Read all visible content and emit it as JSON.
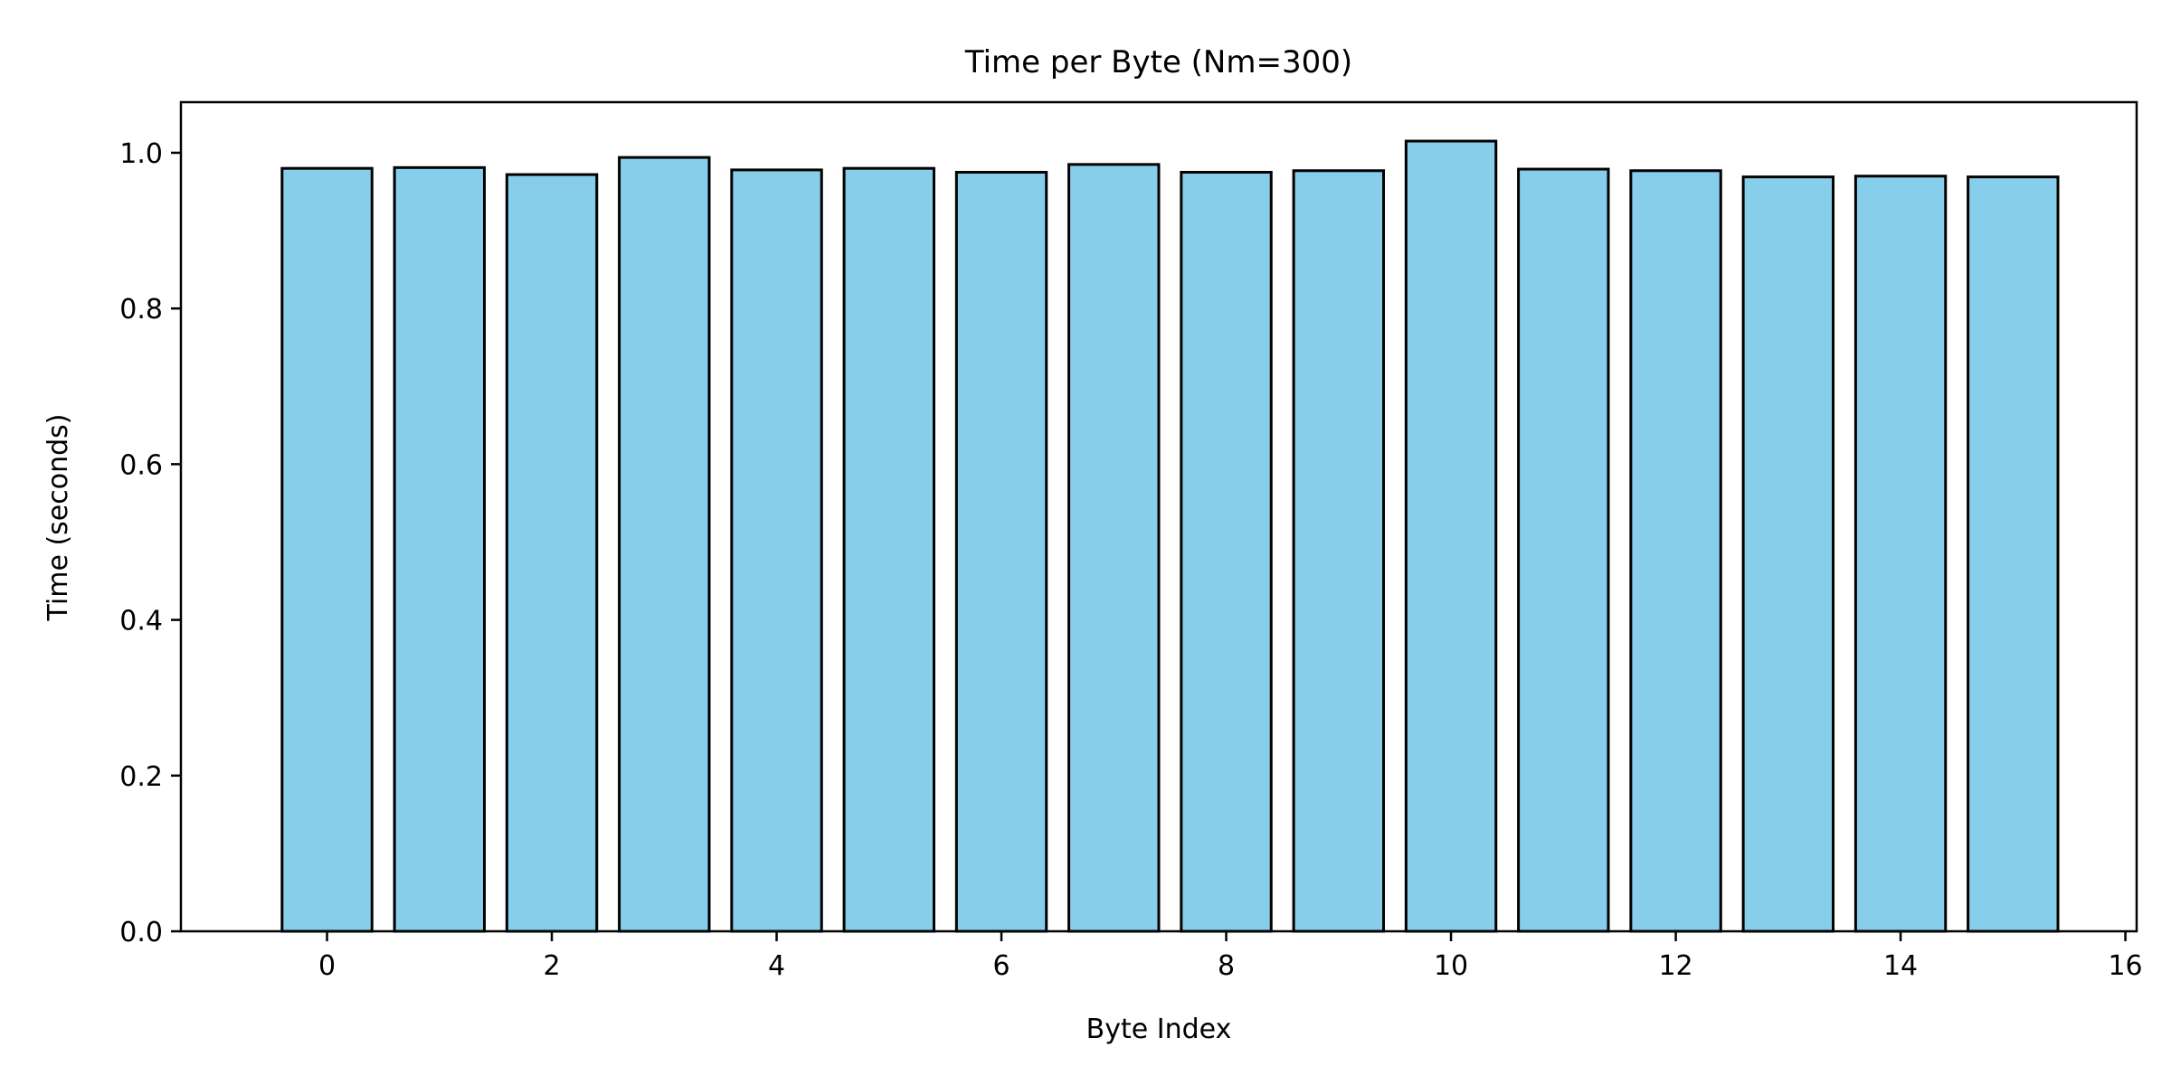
{
  "chart_data": {
    "type": "bar",
    "title": "Time per Byte (Nm=300)",
    "xlabel": "Byte Index",
    "ylabel": "Time (seconds)",
    "x": [
      0,
      1,
      2,
      3,
      4,
      5,
      6,
      7,
      8,
      9,
      10,
      11,
      12,
      13,
      14,
      15
    ],
    "values": [
      0.98,
      0.981,
      0.972,
      0.994,
      0.978,
      0.98,
      0.975,
      0.985,
      0.975,
      0.977,
      1.015,
      0.979,
      0.977,
      0.969,
      0.97,
      0.969
    ],
    "xlim": [
      -1.3,
      16.1
    ],
    "ylim": [
      0.0,
      1.065
    ],
    "xticks": [
      0,
      2,
      4,
      6,
      8,
      10,
      12,
      14,
      16
    ],
    "xtick_labels": [
      "0",
      "2",
      "4",
      "6",
      "8",
      "10",
      "12",
      "14",
      "16"
    ],
    "yticks": [
      0.0,
      0.2,
      0.4,
      0.6,
      0.8,
      1.0
    ],
    "ytick_labels": [
      "0.0",
      "0.2",
      "0.4",
      "0.6",
      "0.8",
      "1.0"
    ],
    "grid": false,
    "legend": "none",
    "colors": {
      "bar_fill": "#87CEEB",
      "bar_edge": "#000000",
      "axes": "#000000"
    }
  }
}
